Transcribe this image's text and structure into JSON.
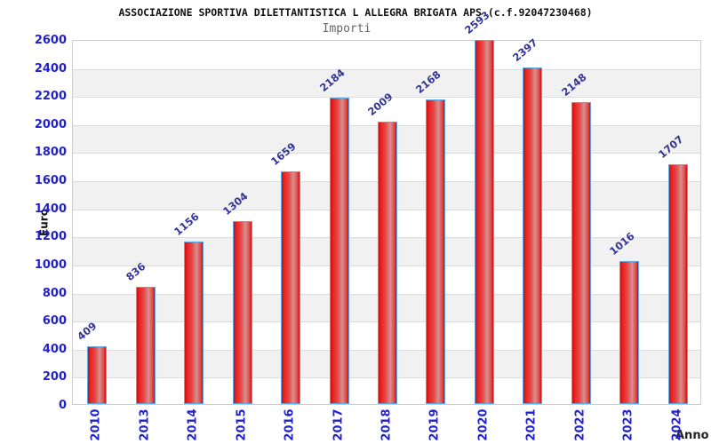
{
  "header": {
    "title": "ASSOCIAZIONE SPORTIVA DILETTANTISTICA L ALLEGRA BRIGATA APS (c.f.92047230468)",
    "subtitle": "Importi"
  },
  "chart_data": {
    "type": "bar",
    "title": "Importi",
    "categories": [
      "2010",
      "2013",
      "2014",
      "2015",
      "2016",
      "2017",
      "2018",
      "2019",
      "2020",
      "2021",
      "2022",
      "2023",
      "2024"
    ],
    "values": [
      409,
      836,
      1156,
      1304,
      1659,
      2184,
      2009,
      2168,
      2593,
      2397,
      2148,
      1016,
      1707
    ],
    "xlabel": "Anno",
    "ylabel": "Euro",
    "ylim": [
      0,
      2600
    ],
    "ytick_step": 200,
    "yticks": [
      0,
      200,
      400,
      600,
      800,
      1000,
      1200,
      1400,
      1600,
      1800,
      2000,
      2200,
      2400,
      2600
    ],
    "grid": "horizontal-stripes",
    "legend": "none",
    "bar_label_rotation_deg": -40,
    "x_tick_rotation_deg": -90,
    "colors": {
      "bar_fill_edge": "#c81010",
      "bar_fill_main": "#ee2222",
      "bar_fill_center": "#d79090",
      "bar_border": "#5ea8e0",
      "axis_tick_text": "#2222cc",
      "bar_value_text": "#333399",
      "stripe_band": "#f1f1f1",
      "gridline": "#dcdcdc",
      "title_text": "#111111",
      "subtitle_text": "#666666"
    }
  }
}
